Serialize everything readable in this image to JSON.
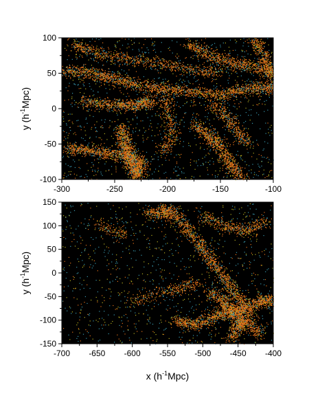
{
  "chart_data": [
    {
      "type": "scatter",
      "panel": "top",
      "title": "",
      "xlabel": "",
      "ylabel": {
        "prefix": "y (h",
        "sup": "-1",
        "suffix": "Mpc)"
      },
      "xlim": [
        -300,
        -100
      ],
      "ylim": [
        -100,
        100
      ],
      "xticks": [
        -300,
        -250,
        -200,
        -150,
        -100
      ],
      "yticks": [
        -100,
        -50,
        0,
        50,
        100
      ],
      "background": "#000000",
      "grid": false,
      "legend": "none",
      "colors": {
        "dense": "#e8731a",
        "mid": "#b8b020",
        "sparse": "#3a9ab0"
      },
      "filaments": [
        {
          "points": [
            [
              -300,
              55
            ],
            [
              -270,
              50
            ],
            [
              -245,
              40
            ],
            [
              -215,
              30
            ],
            [
              -185,
              25
            ],
            [
              -150,
              20
            ],
            [
              -120,
              30
            ],
            [
              -100,
              30
            ]
          ],
          "density": 1.0
        },
        {
          "points": [
            [
              -290,
              90
            ],
            [
              -270,
              80
            ],
            [
              -240,
              70
            ],
            [
              -210,
              65
            ],
            [
              -180,
              55
            ],
            [
              -150,
              50
            ]
          ],
          "density": 0.6
        },
        {
          "points": [
            [
              -280,
              10
            ],
            [
              -250,
              5
            ],
            [
              -230,
              5
            ],
            [
              -215,
              12
            ]
          ],
          "density": 0.9
        },
        {
          "points": [
            [
              -295,
              -55
            ],
            [
              -270,
              -60
            ],
            [
              -245,
              -65
            ],
            [
              -225,
              -75
            ],
            [
              -230,
              -100
            ]
          ],
          "density": 1.0
        },
        {
          "points": [
            [
              -245,
              -25
            ],
            [
              -240,
              -50
            ],
            [
              -235,
              -70
            ],
            [
              -232,
              -95
            ]
          ],
          "density": 1.0
        },
        {
          "points": [
            [
              -175,
              -20
            ],
            [
              -160,
              -40
            ],
            [
              -150,
              -55
            ],
            [
              -140,
              -80
            ],
            [
              -130,
              -100
            ]
          ],
          "density": 0.8
        },
        {
          "points": [
            [
              -180,
              90
            ],
            [
              -160,
              75
            ],
            [
              -140,
              65
            ],
            [
              -120,
              60
            ],
            [
              -100,
              50
            ]
          ],
          "density": 0.7
        },
        {
          "points": [
            [
              -205,
              25
            ],
            [
              -200,
              -5
            ],
            [
              -195,
              -40
            ],
            [
              -205,
              -60
            ]
          ],
          "density": 0.5
        },
        {
          "points": [
            [
              -160,
              10
            ],
            [
              -145,
              -10
            ],
            [
              -135,
              -30
            ],
            [
              -125,
              -50
            ]
          ],
          "density": 0.5
        },
        {
          "points": [
            [
              -120,
              100
            ],
            [
              -110,
              80
            ],
            [
              -105,
              60
            ],
            [
              -100,
              40
            ]
          ],
          "density": 0.6
        }
      ]
    },
    {
      "type": "scatter",
      "panel": "bottom",
      "title": "",
      "xlabel": {
        "prefix": "x (h",
        "sup": "-1",
        "suffix": "Mpc)"
      },
      "ylabel": {
        "prefix": "y (h",
        "sup": "-1",
        "suffix": "Mpc)"
      },
      "xlim": [
        -700,
        -400
      ],
      "ylim": [
        -150,
        150
      ],
      "xticks": [
        -700,
        -650,
        -600,
        -550,
        -500,
        -450,
        -400
      ],
      "yticks": [
        -150,
        -100,
        -50,
        0,
        50,
        100,
        150
      ],
      "background": "#000000",
      "grid": false,
      "legend": "none",
      "colors": {
        "dense": "#e8731a",
        "mid": "#b8b020",
        "sparse": "#3a9ab0"
      },
      "filaments": [
        {
          "points": [
            [
              -560,
              140
            ],
            [
              -530,
              110
            ],
            [
              -510,
              70
            ],
            [
              -490,
              30
            ],
            [
              -470,
              -10
            ],
            [
              -450,
              -50
            ],
            [
              -430,
              -90
            ]
          ],
          "density": 0.8
        },
        {
          "points": [
            [
              -540,
              -100
            ],
            [
              -510,
              -110
            ],
            [
              -480,
              -90
            ],
            [
              -450,
              -80
            ],
            [
              -420,
              -60
            ],
            [
              -400,
              -55
            ]
          ],
          "density": 0.9
        },
        {
          "points": [
            [
              -500,
              120
            ],
            [
              -470,
              100
            ],
            [
              -440,
              90
            ],
            [
              -410,
              110
            ]
          ],
          "density": 0.6
        },
        {
          "points": [
            [
              -460,
              -140
            ],
            [
              -450,
              -110
            ],
            [
              -440,
              -100
            ],
            [
              -420,
              -130
            ]
          ],
          "density": 0.7
        },
        {
          "points": [
            [
              -580,
              130
            ],
            [
              -560,
              125
            ],
            [
              -540,
              135
            ]
          ],
          "density": 0.5
        },
        {
          "points": [
            [
              -600,
              -60
            ],
            [
              -560,
              -40
            ],
            [
              -530,
              -30
            ],
            [
              -510,
              -20
            ]
          ],
          "density": 0.4
        },
        {
          "points": [
            [
              -650,
              110
            ],
            [
              -630,
              90
            ],
            [
              -610,
              80
            ]
          ],
          "density": 0.25
        },
        {
          "points": [
            [
              -490,
              -40
            ],
            [
              -470,
              -60
            ],
            [
              -460,
              -80
            ],
            [
              -440,
              -100
            ]
          ],
          "density": 0.7
        }
      ]
    }
  ]
}
